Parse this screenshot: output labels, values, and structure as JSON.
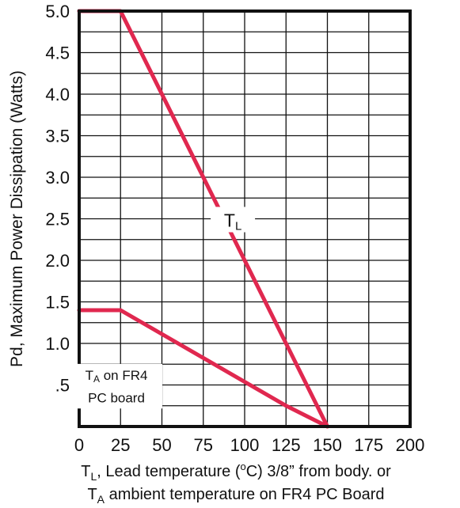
{
  "chart_data": {
    "type": "line",
    "title": "",
    "ylabel": "Pd, Maximum Power Dissipation (Watts)",
    "xlabel_line1": {
      "t": "T",
      "sub": "L",
      "mid": ", Lead temperature (",
      "sup": "o",
      "end": "C) 3/8” from body. or"
    },
    "xlabel_line2": {
      "t": "T",
      "sub": "A",
      "end": " ambient temperature on FR4 PC Board"
    },
    "xlim": [
      0,
      200
    ],
    "ylim": [
      0,
      5.0
    ],
    "x_ticks": [
      0,
      25,
      50,
      75,
      100,
      125,
      150,
      175,
      200
    ],
    "x_tick_labels": [
      "0",
      "25",
      "50",
      "75",
      "100",
      "125",
      "150",
      "175",
      "200"
    ],
    "y_ticks": [
      0.5,
      1.0,
      1.5,
      2.0,
      2.5,
      3.0,
      3.5,
      4.0,
      4.5,
      5.0
    ],
    "y_tick_labels": [
      ".5",
      "1.0",
      "1.5",
      "2.0",
      "2.5",
      "3.0",
      "3.5",
      "4.0",
      "4.5",
      "5.0"
    ],
    "grid": true,
    "line_color": "#e0284f",
    "series": [
      {
        "label_t": "T",
        "label_sub": "L",
        "x": [
          0,
          25,
          150
        ],
        "y": [
          5.0,
          5.0,
          0
        ]
      },
      {
        "label_t": "T",
        "label_sub": "A",
        "label_rest": " on FR4",
        "label_line2": "PC board",
        "x": [
          0,
          25,
          125,
          150
        ],
        "y": [
          1.4,
          1.4,
          0.25,
          0
        ]
      }
    ]
  }
}
